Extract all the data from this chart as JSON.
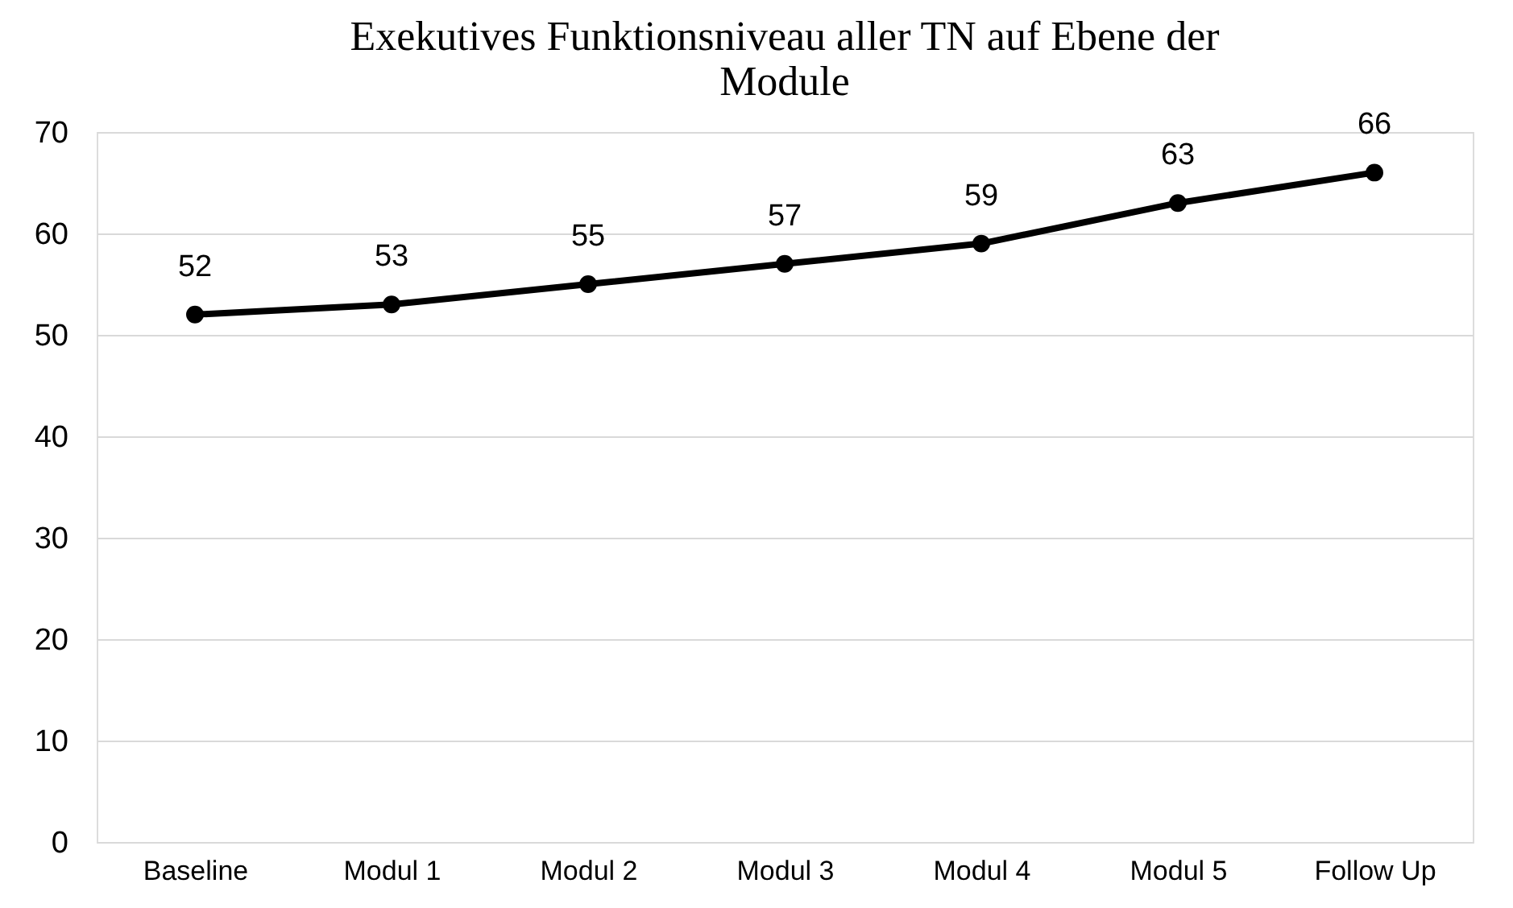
{
  "chart_data": {
    "type": "line",
    "title": [
      "Exekutives Funktionsniveau aller TN auf Ebene der",
      "Module"
    ],
    "categories": [
      "Baseline",
      "Modul 1",
      "Modul 2",
      "Modul 3",
      "Modul 4",
      "Modul 5",
      "Follow Up"
    ],
    "series": [
      {
        "color": "#000000",
        "values": [
          52,
          53,
          55,
          57,
          59,
          63,
          66
        ]
      }
    ],
    "ylim": [
      0,
      70
    ],
    "yticks": [
      0,
      10,
      20,
      30,
      40,
      50,
      60,
      70
    ],
    "grid": "y",
    "data_labels": true,
    "marker": "circle",
    "line_style": "solid",
    "legend": false
  }
}
